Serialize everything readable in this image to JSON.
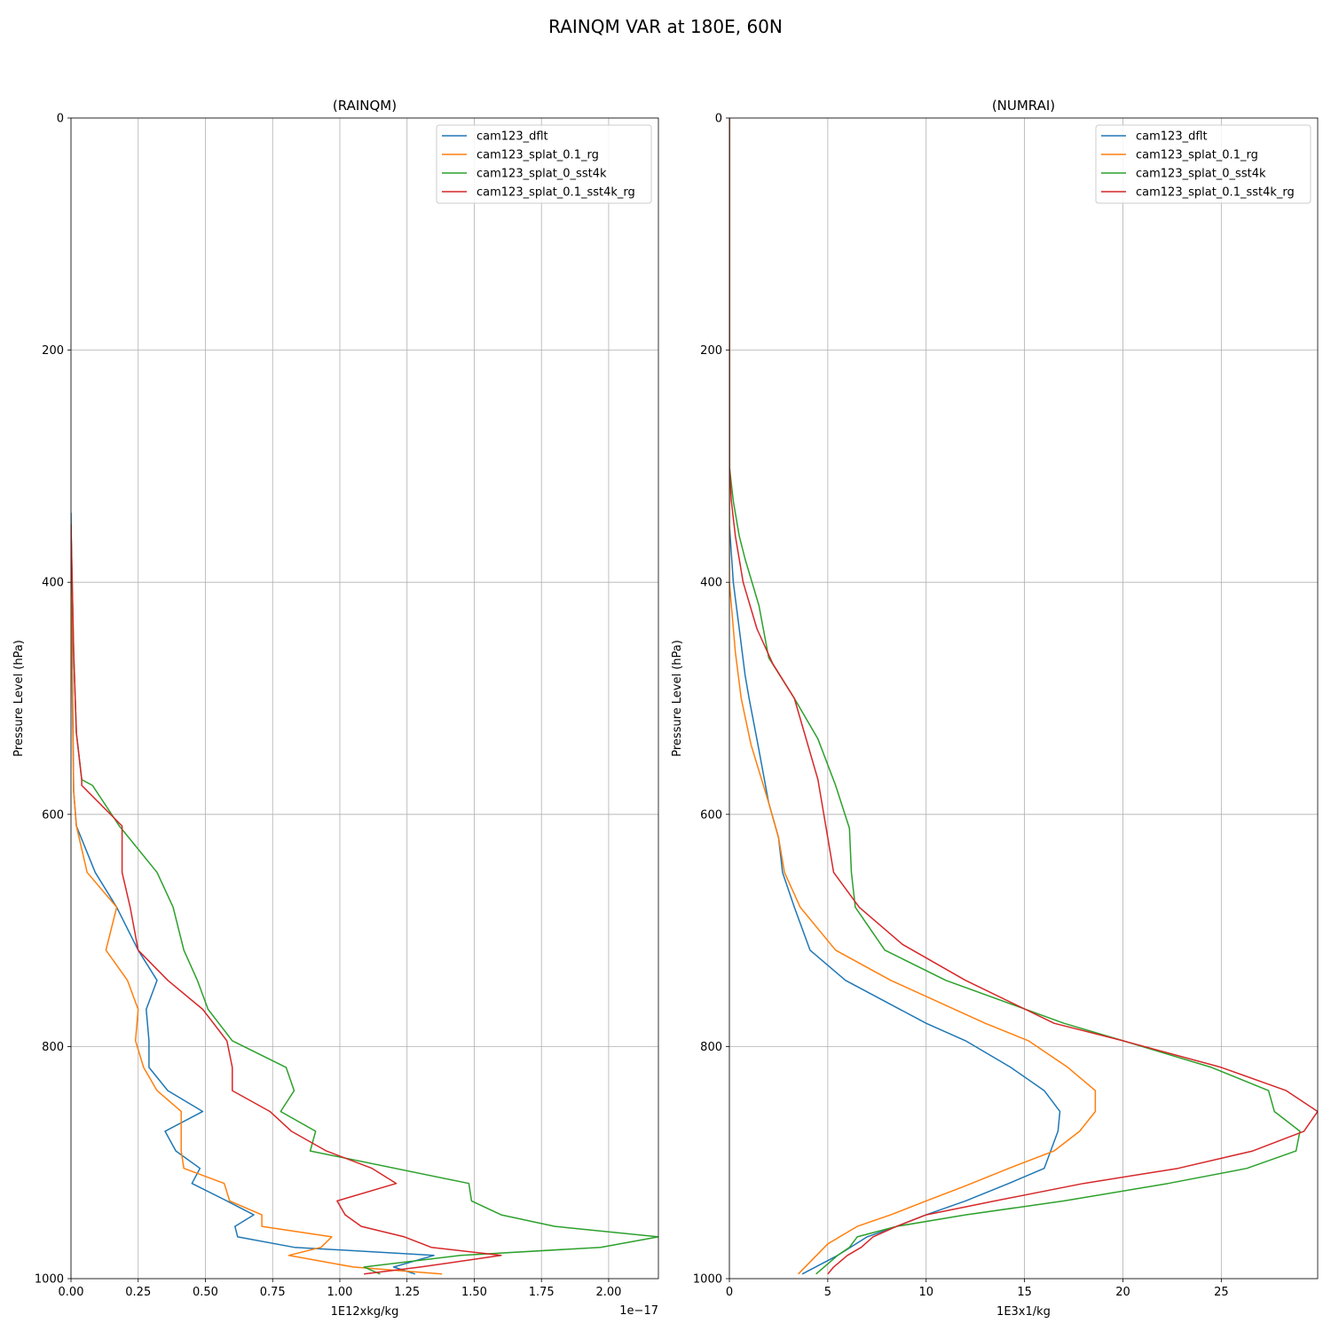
{
  "figure": {
    "title": "RAINQM VAR at 180E, 60N"
  },
  "colors": {
    "cam123_dflt": "#1f77b4",
    "cam123_splat_0.1_rg": "#ff7f0e",
    "cam123_splat_0_sst4k": "#2ca02c",
    "cam123_splat_0.1_sst4k_rg": "#d62728"
  },
  "chart_data": [
    {
      "type": "line",
      "title": "(RAINQM)",
      "xlabel": "1E12xkg/kg",
      "ylabel": "Pressure Level (hPa)",
      "x_offset_text": "1e−17",
      "xlim": [
        0,
        2.185
      ],
      "ylim": [
        1000,
        0
      ],
      "y_inverted": true,
      "grid": true,
      "legend_position": "upper-right",
      "xticks": [
        "0.00",
        "0.25",
        "0.50",
        "0.75",
        "1.00",
        "1.25",
        "1.50",
        "1.75",
        "2.00"
      ],
      "xtick_values": [
        0,
        0.25,
        0.5,
        0.75,
        1.0,
        1.25,
        1.5,
        1.75,
        2.0
      ],
      "yticks": [
        "0",
        "200",
        "400",
        "600",
        "800",
        "1000"
      ],
      "ytick_values": [
        0,
        200,
        400,
        600,
        800,
        1000
      ],
      "series": [
        {
          "name": "cam123_dflt",
          "points": [
            [
              0,
              340
            ],
            [
              0.005,
              470
            ],
            [
              0.01,
              580
            ],
            [
              0.02,
              610
            ],
            [
              0.09,
              650
            ],
            [
              0.17,
              680
            ],
            [
              0.25,
              717
            ],
            [
              0.32,
              743
            ],
            [
              0.28,
              768
            ],
            [
              0.29,
              795
            ],
            [
              0.29,
              818
            ],
            [
              0.36,
              838
            ],
            [
              0.49,
              856
            ],
            [
              0.35,
              873
            ],
            [
              0.39,
              890
            ],
            [
              0.48,
              905
            ],
            [
              0.45,
              918
            ],
            [
              0.58,
              933
            ],
            [
              0.68,
              945
            ],
            [
              0.61,
              955
            ],
            [
              0.62,
              964
            ],
            [
              0.83,
              973
            ],
            [
              1.35,
              980
            ],
            [
              1.2,
              990
            ],
            [
              1.28,
              996
            ]
          ]
        },
        {
          "name": "cam123_splat_0.1_rg",
          "points": [
            [
              0,
              380
            ],
            [
              0.005,
              500
            ],
            [
              0.01,
              580
            ],
            [
              0.02,
              610
            ],
            [
              0.06,
              650
            ],
            [
              0.17,
              680
            ],
            [
              0.13,
              717
            ],
            [
              0.21,
              743
            ],
            [
              0.25,
              768
            ],
            [
              0.24,
              795
            ],
            [
              0.27,
              818
            ],
            [
              0.32,
              838
            ],
            [
              0.41,
              856
            ],
            [
              0.41,
              873
            ],
            [
              0.41,
              890
            ],
            [
              0.42,
              905
            ],
            [
              0.57,
              918
            ],
            [
              0.59,
              933
            ],
            [
              0.71,
              945
            ],
            [
              0.71,
              955
            ],
            [
              0.97,
              964
            ],
            [
              0.93,
              973
            ],
            [
              0.81,
              980
            ],
            [
              1.05,
              990
            ],
            [
              1.38,
              996
            ]
          ]
        },
        {
          "name": "cam123_splat_0_sst4k",
          "points": [
            [
              0,
              350
            ],
            [
              0.01,
              460
            ],
            [
              0.02,
              530
            ],
            [
              0.04,
              570
            ],
            [
              0.08,
              575
            ],
            [
              0.18,
              610
            ],
            [
              0.32,
              650
            ],
            [
              0.38,
              680
            ],
            [
              0.42,
              717
            ],
            [
              0.47,
              743
            ],
            [
              0.51,
              768
            ],
            [
              0.6,
              795
            ],
            [
              0.8,
              818
            ],
            [
              0.83,
              838
            ],
            [
              0.78,
              856
            ],
            [
              0.91,
              873
            ],
            [
              0.89,
              890
            ],
            [
              1.48,
              918
            ],
            [
              1.49,
              933
            ],
            [
              1.6,
              945
            ],
            [
              1.8,
              955
            ],
            [
              2.185,
              964
            ],
            [
              1.97,
              973
            ],
            [
              1.45,
              980
            ],
            [
              1.09,
              990
            ],
            [
              1.15,
              996
            ]
          ]
        },
        {
          "name": "cam123_splat_0.1_sst4k_rg",
          "points": [
            [
              0,
              350
            ],
            [
              0.01,
              460
            ],
            [
              0.02,
              530
            ],
            [
              0.04,
              570
            ],
            [
              0.04,
              575
            ],
            [
              0.19,
              610
            ],
            [
              0.19,
              650
            ],
            [
              0.22,
              680
            ],
            [
              0.25,
              717
            ],
            [
              0.36,
              743
            ],
            [
              0.49,
              768
            ],
            [
              0.58,
              795
            ],
            [
              0.6,
              818
            ],
            [
              0.6,
              838
            ],
            [
              0.74,
              856
            ],
            [
              0.82,
              873
            ],
            [
              0.95,
              890
            ],
            [
              1.12,
              905
            ],
            [
              1.21,
              918
            ],
            [
              0.99,
              933
            ],
            [
              1.02,
              945
            ],
            [
              1.08,
              955
            ],
            [
              1.24,
              964
            ],
            [
              1.34,
              973
            ],
            [
              1.6,
              980
            ],
            [
              1.3,
              990
            ],
            [
              1.09,
              996
            ]
          ]
        }
      ]
    },
    {
      "type": "line",
      "title": "(NUMRAI)",
      "xlabel": "1E3x1/kg",
      "ylabel": "Pressure Level (hPa)",
      "xlim": [
        0,
        29.9
      ],
      "ylim": [
        1000,
        0
      ],
      "y_inverted": true,
      "grid": true,
      "legend_position": "upper-right",
      "xticks": [
        "0",
        "5",
        "10",
        "15",
        "20",
        "25"
      ],
      "xtick_values": [
        0,
        5,
        10,
        15,
        20,
        25
      ],
      "yticks": [
        "0",
        "200",
        "400",
        "600",
        "800",
        "1000"
      ],
      "ytick_values": [
        0,
        200,
        400,
        600,
        800,
        1000
      ],
      "series": [
        {
          "name": "cam123_dflt",
          "points": [
            [
              0,
              0
            ],
            [
              0,
              350
            ],
            [
              0.2,
              400
            ],
            [
              0.5,
              440
            ],
            [
              0.8,
              480
            ],
            [
              1.0,
              500
            ],
            [
              1.45,
              540
            ],
            [
              2.0,
              590
            ],
            [
              2.5,
              620
            ],
            [
              2.7,
              650
            ],
            [
              3.3,
              680
            ],
            [
              4.1,
              717
            ],
            [
              5.9,
              743
            ],
            [
              10,
              780
            ],
            [
              12,
              795
            ],
            [
              14.3,
              818
            ],
            [
              16,
              838
            ],
            [
              16.8,
              856
            ],
            [
              16.7,
              873
            ],
            [
              16.0,
              905
            ],
            [
              14.2,
              918
            ],
            [
              12.0,
              933
            ],
            [
              10,
              945
            ],
            [
              8.5,
              955
            ],
            [
              7.0,
              964
            ],
            [
              5.5,
              980
            ],
            [
              3.7,
              996
            ]
          ]
        },
        {
          "name": "cam123_splat_0.1_rg",
          "points": [
            [
              0,
              0
            ],
            [
              0,
              400
            ],
            [
              0.3,
              460
            ],
            [
              0.6,
              500
            ],
            [
              1.1,
              540
            ],
            [
              2.0,
              590
            ],
            [
              2.5,
              620
            ],
            [
              2.8,
              650
            ],
            [
              3.6,
              680
            ],
            [
              5.4,
              717
            ],
            [
              8.2,
              743
            ],
            [
              13,
              780
            ],
            [
              15.2,
              795
            ],
            [
              17.2,
              818
            ],
            [
              18.6,
              838
            ],
            [
              18.6,
              856
            ],
            [
              17.8,
              873
            ],
            [
              16.5,
              890
            ],
            [
              14.2,
              905
            ],
            [
              12.0,
              920
            ],
            [
              10.0,
              933
            ],
            [
              8.2,
              945
            ],
            [
              6.5,
              955
            ],
            [
              5.0,
              970
            ],
            [
              3.5,
              996
            ]
          ]
        },
        {
          "name": "cam123_splat_0_sst4k",
          "points": [
            [
              0,
              0
            ],
            [
              0,
              300
            ],
            [
              0.2,
              330
            ],
            [
              0.5,
              360
            ],
            [
              0.8,
              380
            ],
            [
              1.5,
              420
            ],
            [
              2,
              465
            ],
            [
              3.3,
              500
            ],
            [
              4.5,
              535
            ],
            [
              5.4,
              575
            ],
            [
              6.1,
              612
            ],
            [
              6.2,
              650
            ],
            [
              6.4,
              680
            ],
            [
              7.9,
              717
            ],
            [
              11,
              743
            ],
            [
              17,
              780
            ],
            [
              20,
              795
            ],
            [
              24.5,
              818
            ],
            [
              27.4,
              838
            ],
            [
              27.7,
              856
            ],
            [
              29.0,
              873
            ],
            [
              28.8,
              890
            ],
            [
              26.3,
              905
            ],
            [
              22.3,
              918
            ],
            [
              17,
              933
            ],
            [
              12,
              945
            ],
            [
              8.5,
              955
            ],
            [
              6.5,
              964
            ],
            [
              6.1,
              973
            ],
            [
              5.5,
              980
            ],
            [
              4.4,
              996
            ]
          ]
        },
        {
          "name": "cam123_splat_0.1_sst4k_rg",
          "points": [
            [
              0,
              0
            ],
            [
              0,
              300
            ],
            [
              0.1,
              330
            ],
            [
              0.3,
              360
            ],
            [
              0.7,
              400
            ],
            [
              1.4,
              440
            ],
            [
              2.2,
              470
            ],
            [
              3.3,
              500
            ],
            [
              4.5,
              570
            ],
            [
              5.3,
              650
            ],
            [
              6.6,
              680
            ],
            [
              8.8,
              712
            ],
            [
              12,
              743
            ],
            [
              16.5,
              780
            ],
            [
              20,
              795
            ],
            [
              25,
              818
            ],
            [
              28.3,
              838
            ],
            [
              29.9,
              856
            ],
            [
              29.2,
              873
            ],
            [
              26.6,
              890
            ],
            [
              22.8,
              905
            ],
            [
              18,
              918
            ],
            [
              13.5,
              933
            ],
            [
              10,
              945
            ],
            [
              8.5,
              955
            ],
            [
              7.3,
              964
            ],
            [
              6.7,
              973
            ],
            [
              6.0,
              980
            ],
            [
              5.3,
              990
            ],
            [
              5.0,
              996
            ]
          ]
        }
      ]
    }
  ]
}
